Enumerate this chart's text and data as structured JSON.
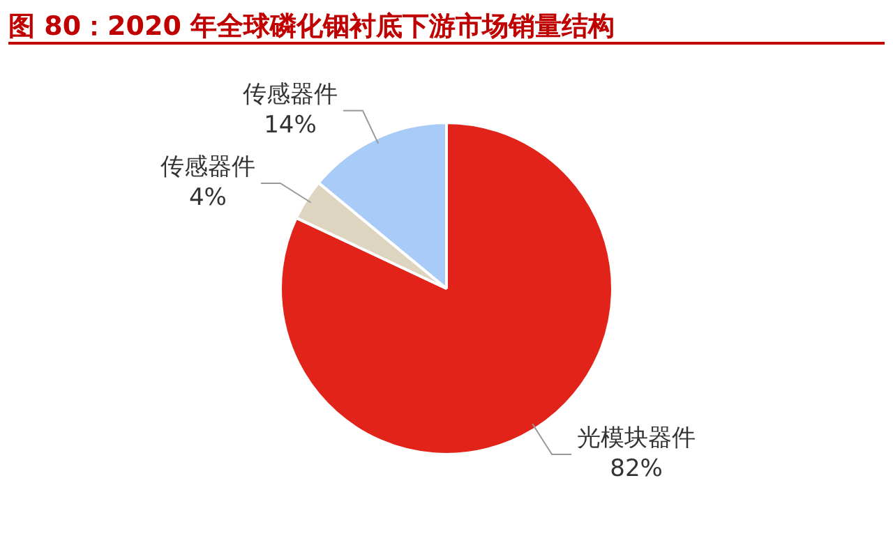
{
  "chart_data": {
    "type": "pie",
    "title": "图 80：2020 年全球磷化铟衬底下游市场销量结构",
    "categories": [
      "光模块器件",
      "传感器件",
      "传感器件"
    ],
    "values": [
      82,
      4,
      14
    ],
    "colors": [
      "#e2231a",
      "#ddd5c0",
      "#a9cbf8"
    ],
    "value_labels": [
      "82%",
      "4%",
      "14%"
    ],
    "legend": false
  }
}
